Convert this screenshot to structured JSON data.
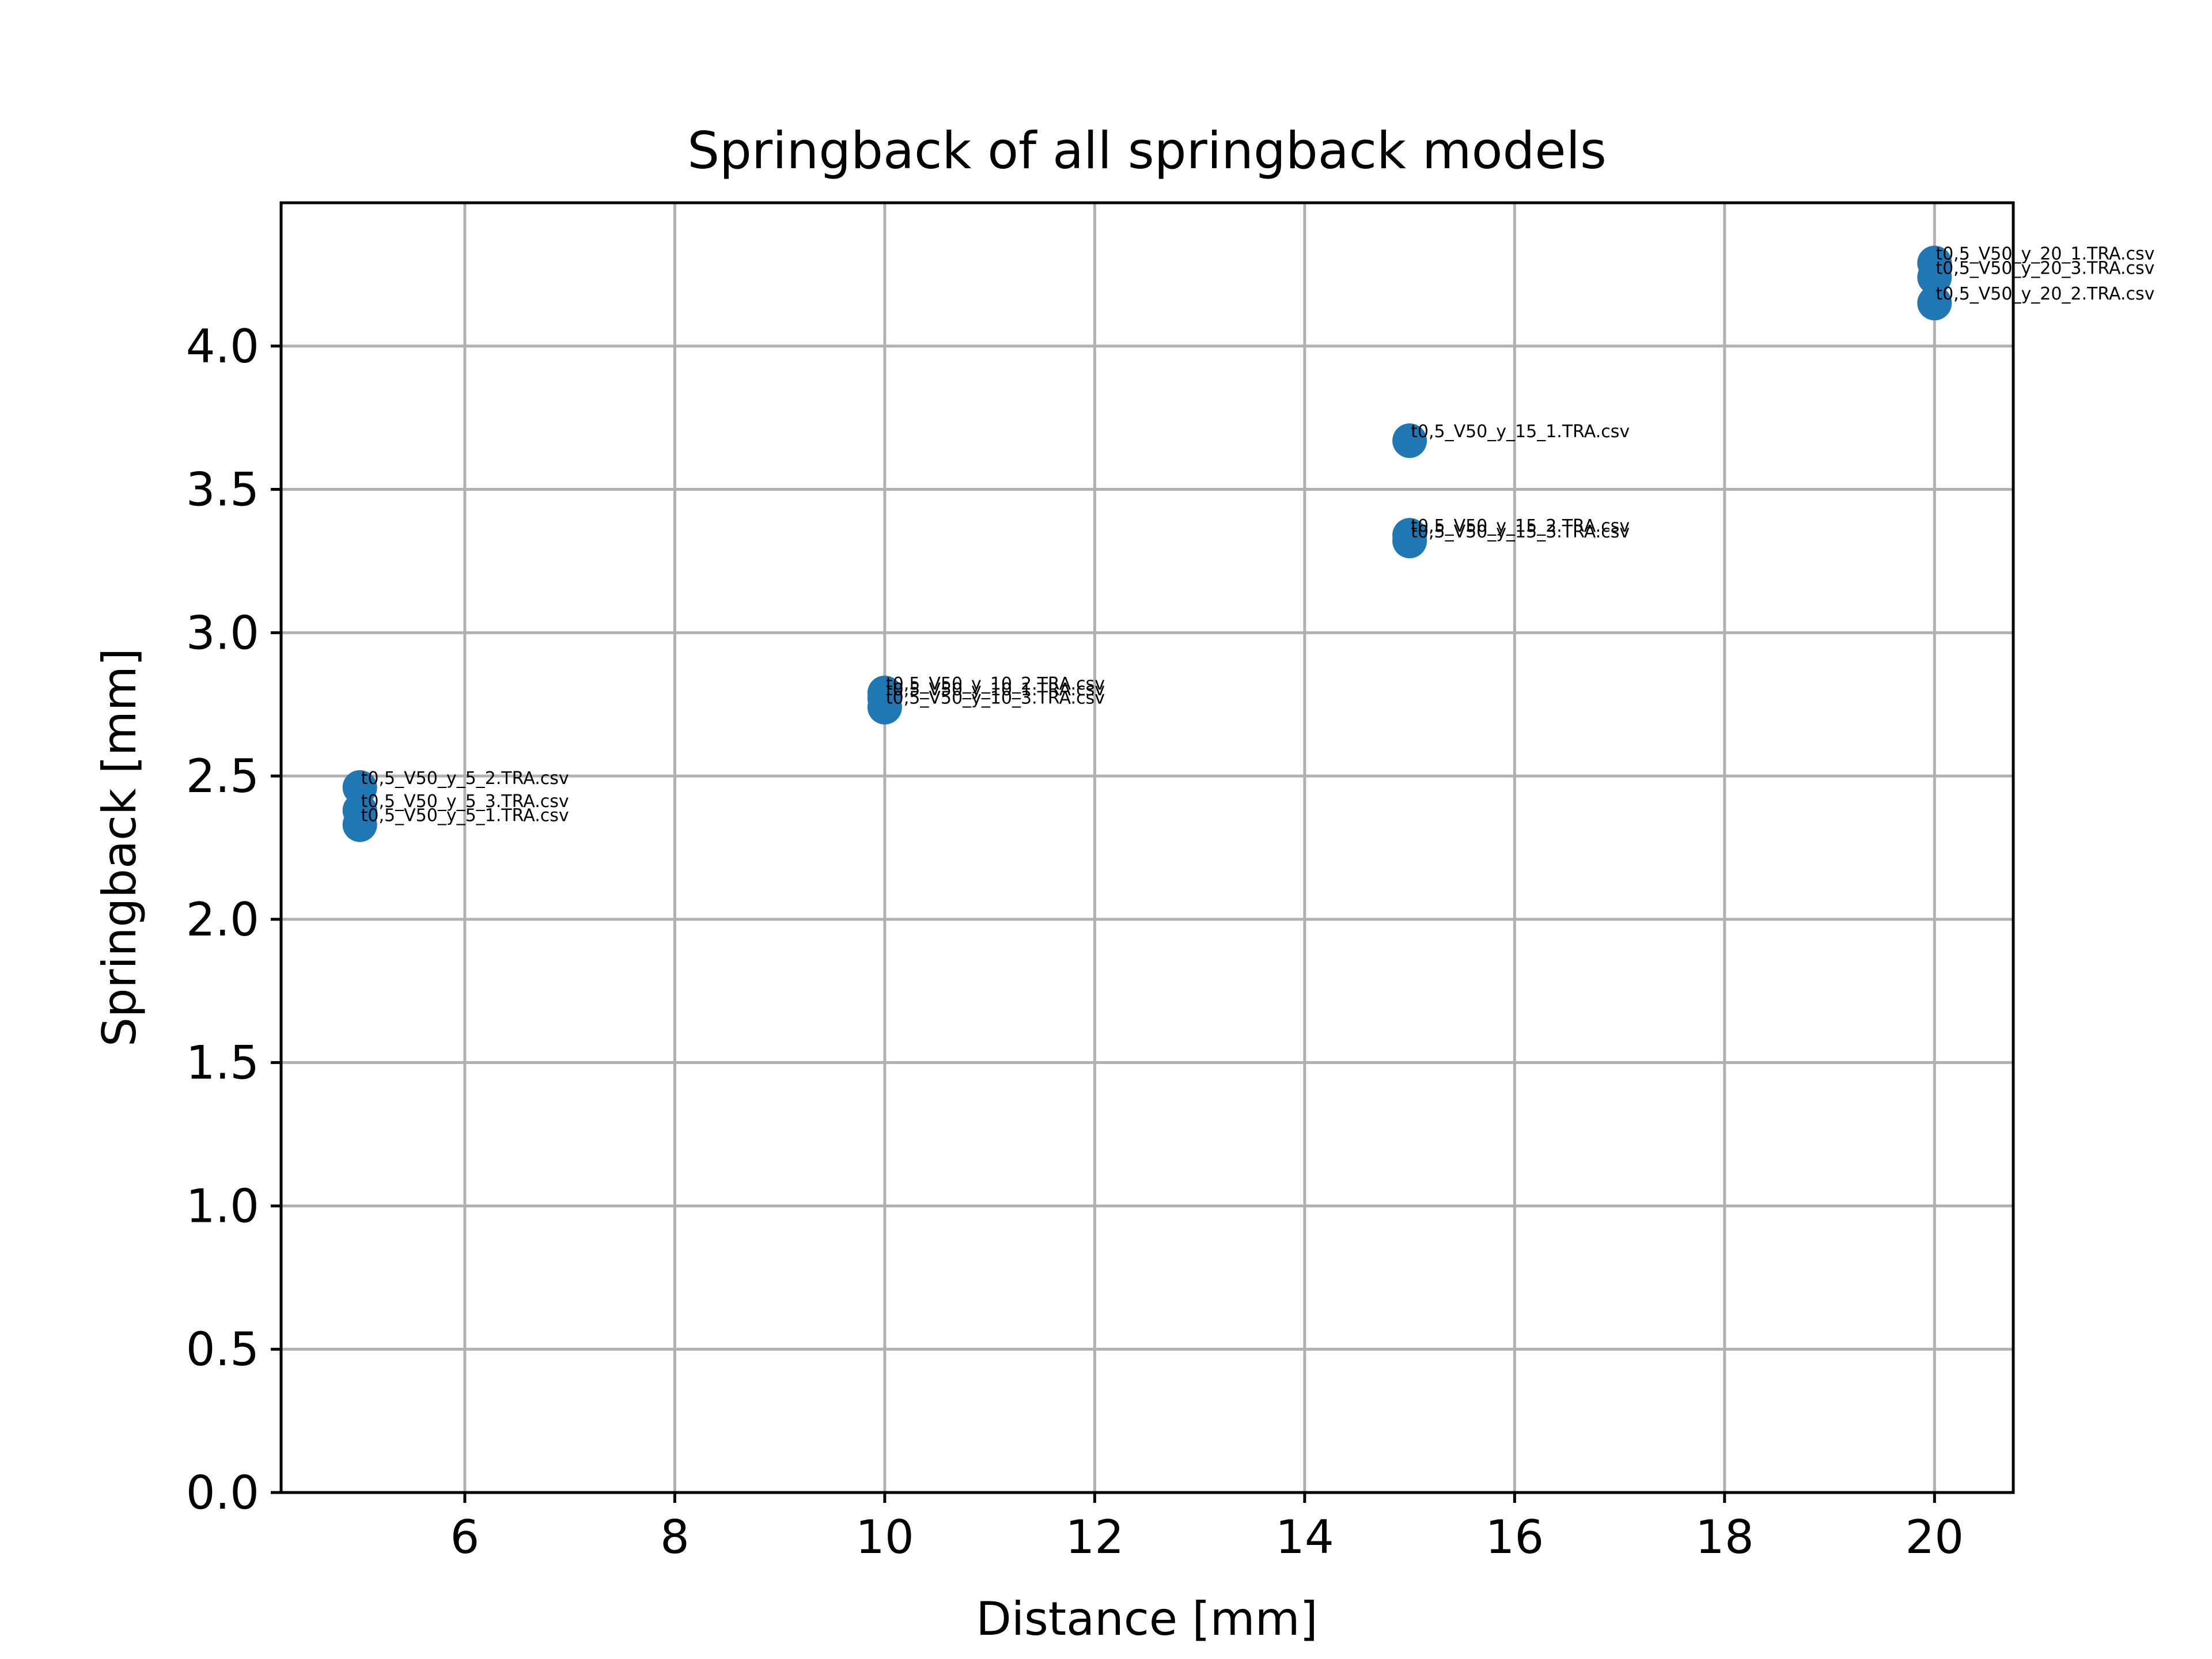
{
  "chart_data": {
    "type": "scatter",
    "title": "Springback of all springback models",
    "xlabel": "Distance [mm]",
    "ylabel": "Springback [mm]",
    "xlim": [
      4.25,
      20.75
    ],
    "ylim": [
      0,
      4.5
    ],
    "xticks": [
      6,
      8,
      10,
      12,
      14,
      16,
      18,
      20
    ],
    "yticks": [
      0.0,
      0.5,
      1.0,
      1.5,
      2.0,
      2.5,
      3.0,
      3.5,
      4.0
    ],
    "grid": true,
    "marker_color": "#1f77b4",
    "points": [
      {
        "x": 5,
        "y": 2.46,
        "label": "t0,5_V50_y_5_2.TRA.csv"
      },
      {
        "x": 5,
        "y": 2.38,
        "label": "t0,5_V50_y_5_3.TRA.csv"
      },
      {
        "x": 5,
        "y": 2.33,
        "label": "t0,5_V50_y_5_1.TRA.csv"
      },
      {
        "x": 10,
        "y": 2.79,
        "label": "t0,5_V50_y_10_2.TRA.csv"
      },
      {
        "x": 10,
        "y": 2.77,
        "label": "t0,5_V50_y_10_1.TRA.csv"
      },
      {
        "x": 10,
        "y": 2.74,
        "label": "t0,5_V50_y_10_3.TRA.csv"
      },
      {
        "x": 15,
        "y": 3.67,
        "label": "t0,5_V50_y_15_1.TRA.csv"
      },
      {
        "x": 15,
        "y": 3.34,
        "label": "t0,5_V50_y_15_2.TRA.csv"
      },
      {
        "x": 15,
        "y": 3.32,
        "label": "t0,5_V50_y_15_3.TRA.csv"
      },
      {
        "x": 20,
        "y": 4.29,
        "label": "t0,5_V50_y_20_1.TRA.csv"
      },
      {
        "x": 20,
        "y": 4.24,
        "label": "t0,5_V50_y_20_3.TRA.csv"
      },
      {
        "x": 20,
        "y": 4.15,
        "label": "t0,5_V50_y_20_2.TRA.csv"
      }
    ]
  }
}
